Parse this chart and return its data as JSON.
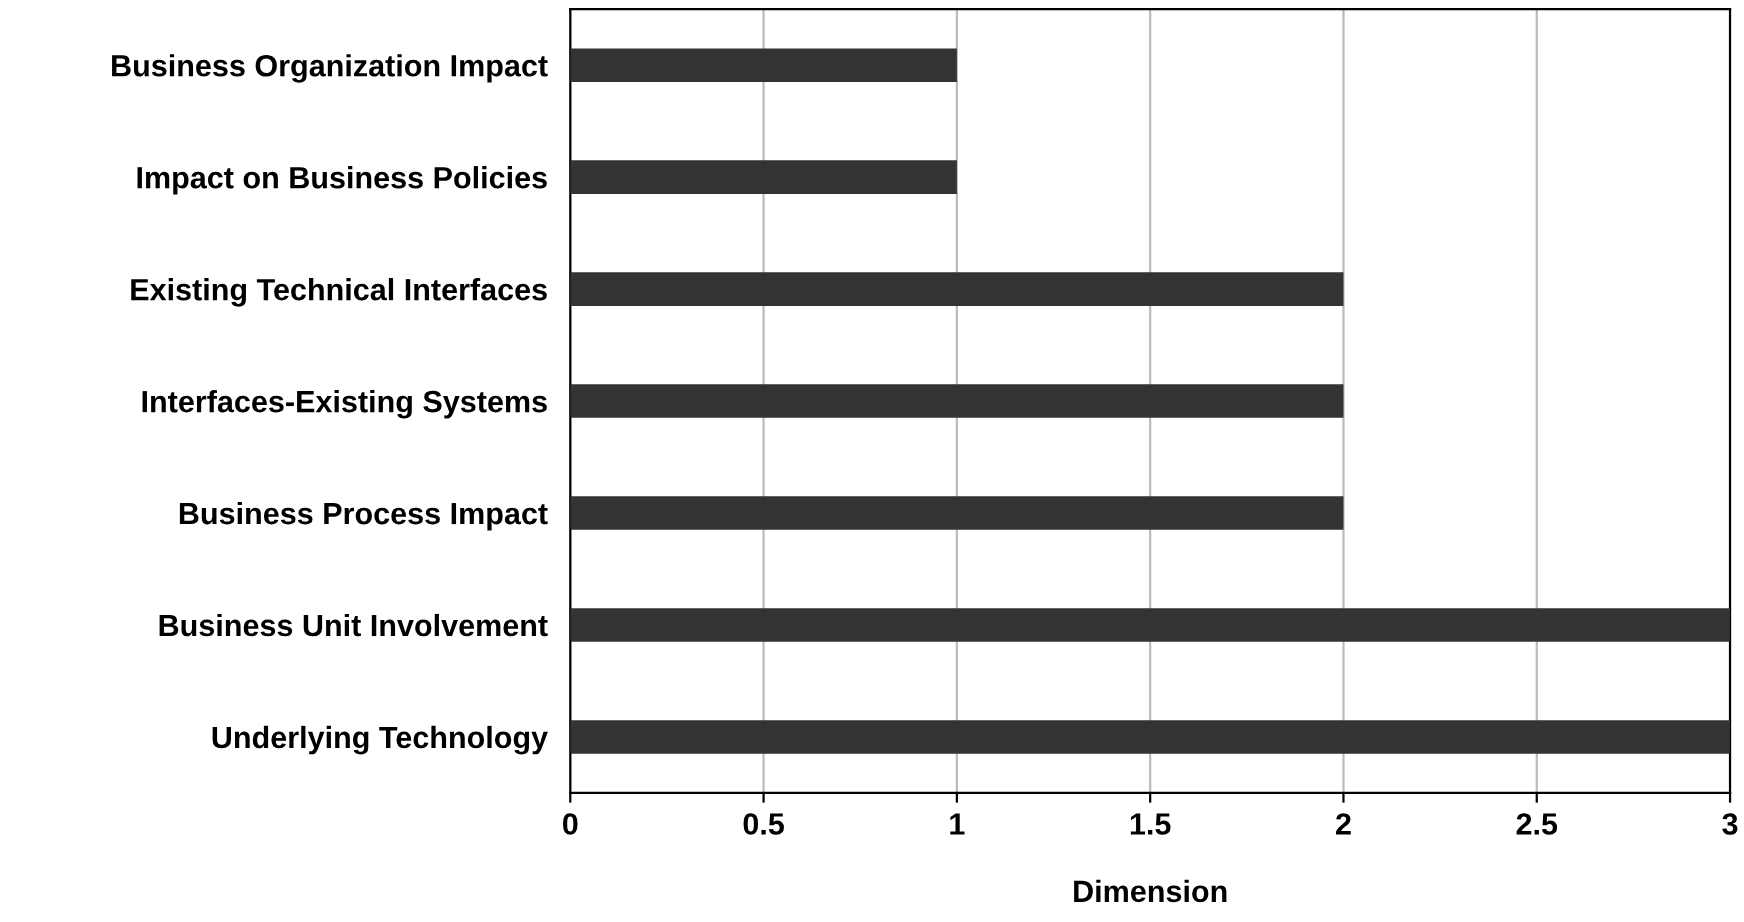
{
  "chart_data": {
    "type": "bar",
    "orientation": "horizontal",
    "xlabel": "Dimension",
    "categories": [
      "Business Organization Impact",
      "Impact on Business Policies",
      "Existing Technical Interfaces",
      "Interfaces-Existing Systems",
      "Business Process Impact",
      "Business Unit Involvement",
      "Underlying Technology"
    ],
    "values": [
      1,
      1,
      2,
      2,
      2,
      3,
      3
    ],
    "color": "#333333",
    "xlim": [
      0,
      3
    ],
    "xticks": [
      0,
      0.5,
      1,
      1.5,
      2,
      2.5,
      3
    ],
    "grid": "x",
    "legend": false
  }
}
